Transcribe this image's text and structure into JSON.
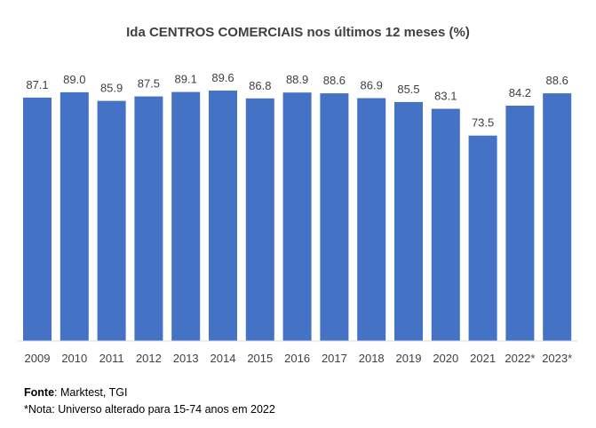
{
  "chart_data": {
    "type": "bar",
    "title": "Ida CENTROS COMERCIAIS nos últimos 12 meses (%)",
    "categories": [
      "2009",
      "2010",
      "2011",
      "2012",
      "2013",
      "2014",
      "2015",
      "2016",
      "2017",
      "2018",
      "2019",
      "2020",
      "2021",
      "2022*",
      "2023*"
    ],
    "values": [
      87.1,
      89.0,
      85.9,
      87.5,
      89.1,
      89.6,
      86.8,
      88.9,
      88.6,
      86.9,
      85.5,
      83.1,
      73.5,
      84.2,
      88.6
    ],
    "value_labels": [
      "87.1",
      "89.0",
      "85.9",
      "87.5",
      "89.1",
      "89.6",
      "86.8",
      "88.9",
      "88.6",
      "86.9",
      "85.5",
      "83.1",
      "73.5",
      "84.2",
      "88.6"
    ],
    "xlabel": "",
    "ylabel": "",
    "ylim": [
      0,
      89.6
    ],
    "grid": false,
    "bar_color": "#4472c4"
  },
  "notes": {
    "source_label": "Fonte",
    "source_text": ": Marktest, TGI",
    "note_text": "*Nota: Universo alterado para 15-74 anos em 2022"
  }
}
